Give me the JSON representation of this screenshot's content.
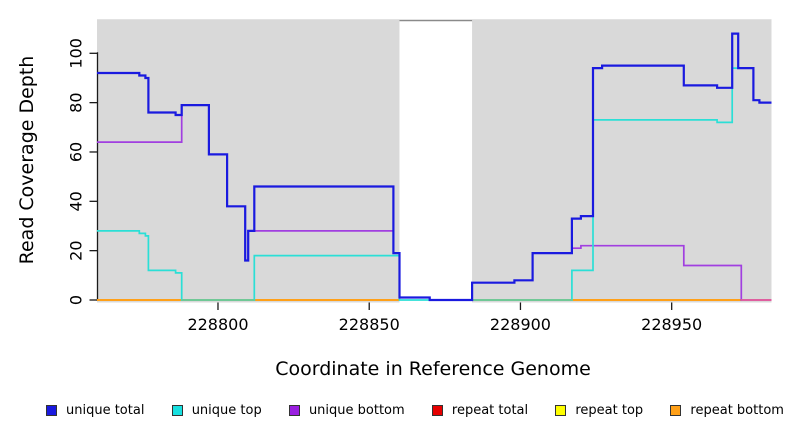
{
  "chart_data": {
    "type": "line",
    "subtype": "step-coverage",
    "title": "",
    "xlabel": "Coordinate in Reference Genome",
    "ylabel": "Read Coverage Depth",
    "xlim": [
      228760,
      228983
    ],
    "ylim": [
      0,
      113
    ],
    "x_ticks": [
      228800,
      228850,
      228900,
      228950
    ],
    "y_ticks": [
      0,
      20,
      40,
      60,
      80,
      100
    ],
    "grid": false,
    "legend_position": "bottom",
    "plot_background_color": "#d9d9d9",
    "plot_top_border_color": "#8a8a8a",
    "no_data_region": [
      228860,
      228884
    ],
    "series": [
      {
        "name": "repeat total",
        "color": "#e60000",
        "width": 1.5,
        "segments": [
          [
            [
              228760,
              0
            ],
            [
              228860,
              0
            ]
          ],
          [
            [
              228884,
              0
            ],
            [
              228983,
              0
            ]
          ]
        ]
      },
      {
        "name": "repeat top",
        "color": "#ffff00",
        "width": 1.5,
        "segments": [
          [
            [
              228760,
              0
            ],
            [
              228860,
              0
            ]
          ],
          [
            [
              228884,
              0
            ],
            [
              228983,
              0
            ]
          ]
        ]
      },
      {
        "name": "repeat bottom",
        "color": "#ffa018",
        "width": 2,
        "segments": [
          [
            [
              228760,
              0
            ],
            [
              228860,
              0
            ]
          ],
          [
            [
              228884,
              0
            ],
            [
              228983,
              0
            ]
          ]
        ]
      },
      {
        "name": "unique bottom",
        "color": "#a13fe0",
        "width": 1.7,
        "segments": [
          [
            [
              228760,
              64
            ],
            [
              228788,
              79
            ],
            [
              228797,
              59
            ],
            [
              228803,
              38
            ],
            [
              228809,
              16
            ],
            [
              228810,
              28
            ],
            [
              228858,
              19
            ],
            [
              228860,
              1
            ],
            [
              228870,
              0
            ],
            [
              228884,
              7
            ],
            [
              228898,
              8
            ],
            [
              228904,
              19
            ],
            [
              228917,
              21
            ],
            [
              228920,
              22
            ],
            [
              228954,
              14
            ],
            [
              228973,
              0
            ],
            [
              228983,
              0
            ]
          ]
        ]
      },
      {
        "name": "unique top",
        "color": "#2bdfd6",
        "width": 1.7,
        "segments": [
          [
            [
              228760,
              28
            ],
            [
              228774,
              27
            ],
            [
              228776,
              26
            ],
            [
              228777,
              12
            ],
            [
              228786,
              11
            ],
            [
              228788,
              0
            ],
            [
              228812,
              18
            ],
            [
              228860,
              0
            ],
            [
              228917,
              12
            ],
            [
              228924,
              73
            ],
            [
              228965,
              72
            ],
            [
              228970,
              94
            ],
            [
              228977,
              81
            ],
            [
              228979,
              80
            ],
            [
              228983,
              80
            ]
          ]
        ]
      },
      {
        "name": "unique total",
        "color": "#1a1adf",
        "width": 2.2,
        "segments": [
          [
            [
              228760,
              92
            ],
            [
              228774,
              91
            ],
            [
              228776,
              90
            ],
            [
              228777,
              76
            ],
            [
              228786,
              75
            ],
            [
              228788,
              79
            ],
            [
              228797,
              59
            ],
            [
              228803,
              38
            ],
            [
              228809,
              16
            ],
            [
              228810,
              28
            ],
            [
              228812,
              46
            ],
            [
              228858,
              19
            ],
            [
              228860,
              1
            ],
            [
              228870,
              0
            ],
            [
              228884,
              7
            ],
            [
              228898,
              8
            ],
            [
              228904,
              19
            ],
            [
              228917,
              33
            ],
            [
              228920,
              34
            ],
            [
              228924,
              94
            ],
            [
              228927,
              95
            ],
            [
              228954,
              87
            ],
            [
              228965,
              86
            ],
            [
              228970,
              108
            ],
            [
              228972,
              94
            ],
            [
              228977,
              81
            ],
            [
              228979,
              80
            ],
            [
              228983,
              80
            ]
          ]
        ]
      }
    ],
    "overlap_blend_segments": [
      {
        "x1": 228788,
        "x2": 228812,
        "value": 0,
        "color": "#72c794",
        "note": "unique top at 0 over repeat bottom"
      },
      {
        "x1": 228884,
        "x2": 228917,
        "value": 0,
        "color": "#72c794",
        "note": "unique top at 0 over repeat bottom"
      },
      {
        "x1": 228973,
        "x2": 228983,
        "value": 0,
        "color": "#e55f9d",
        "note": "unique bottom at 0 over repeat bottom"
      }
    ]
  },
  "legend": {
    "items": [
      {
        "label": "unique total",
        "color": "#1a1adf"
      },
      {
        "label": "unique top",
        "color": "#17e0e0"
      },
      {
        "label": "unique bottom",
        "color": "#9a1fe0"
      },
      {
        "label": "repeat total",
        "color": "#e60000"
      },
      {
        "label": "repeat top",
        "color": "#ffff00"
      },
      {
        "label": "repeat bottom",
        "color": "#ffa018"
      }
    ]
  }
}
